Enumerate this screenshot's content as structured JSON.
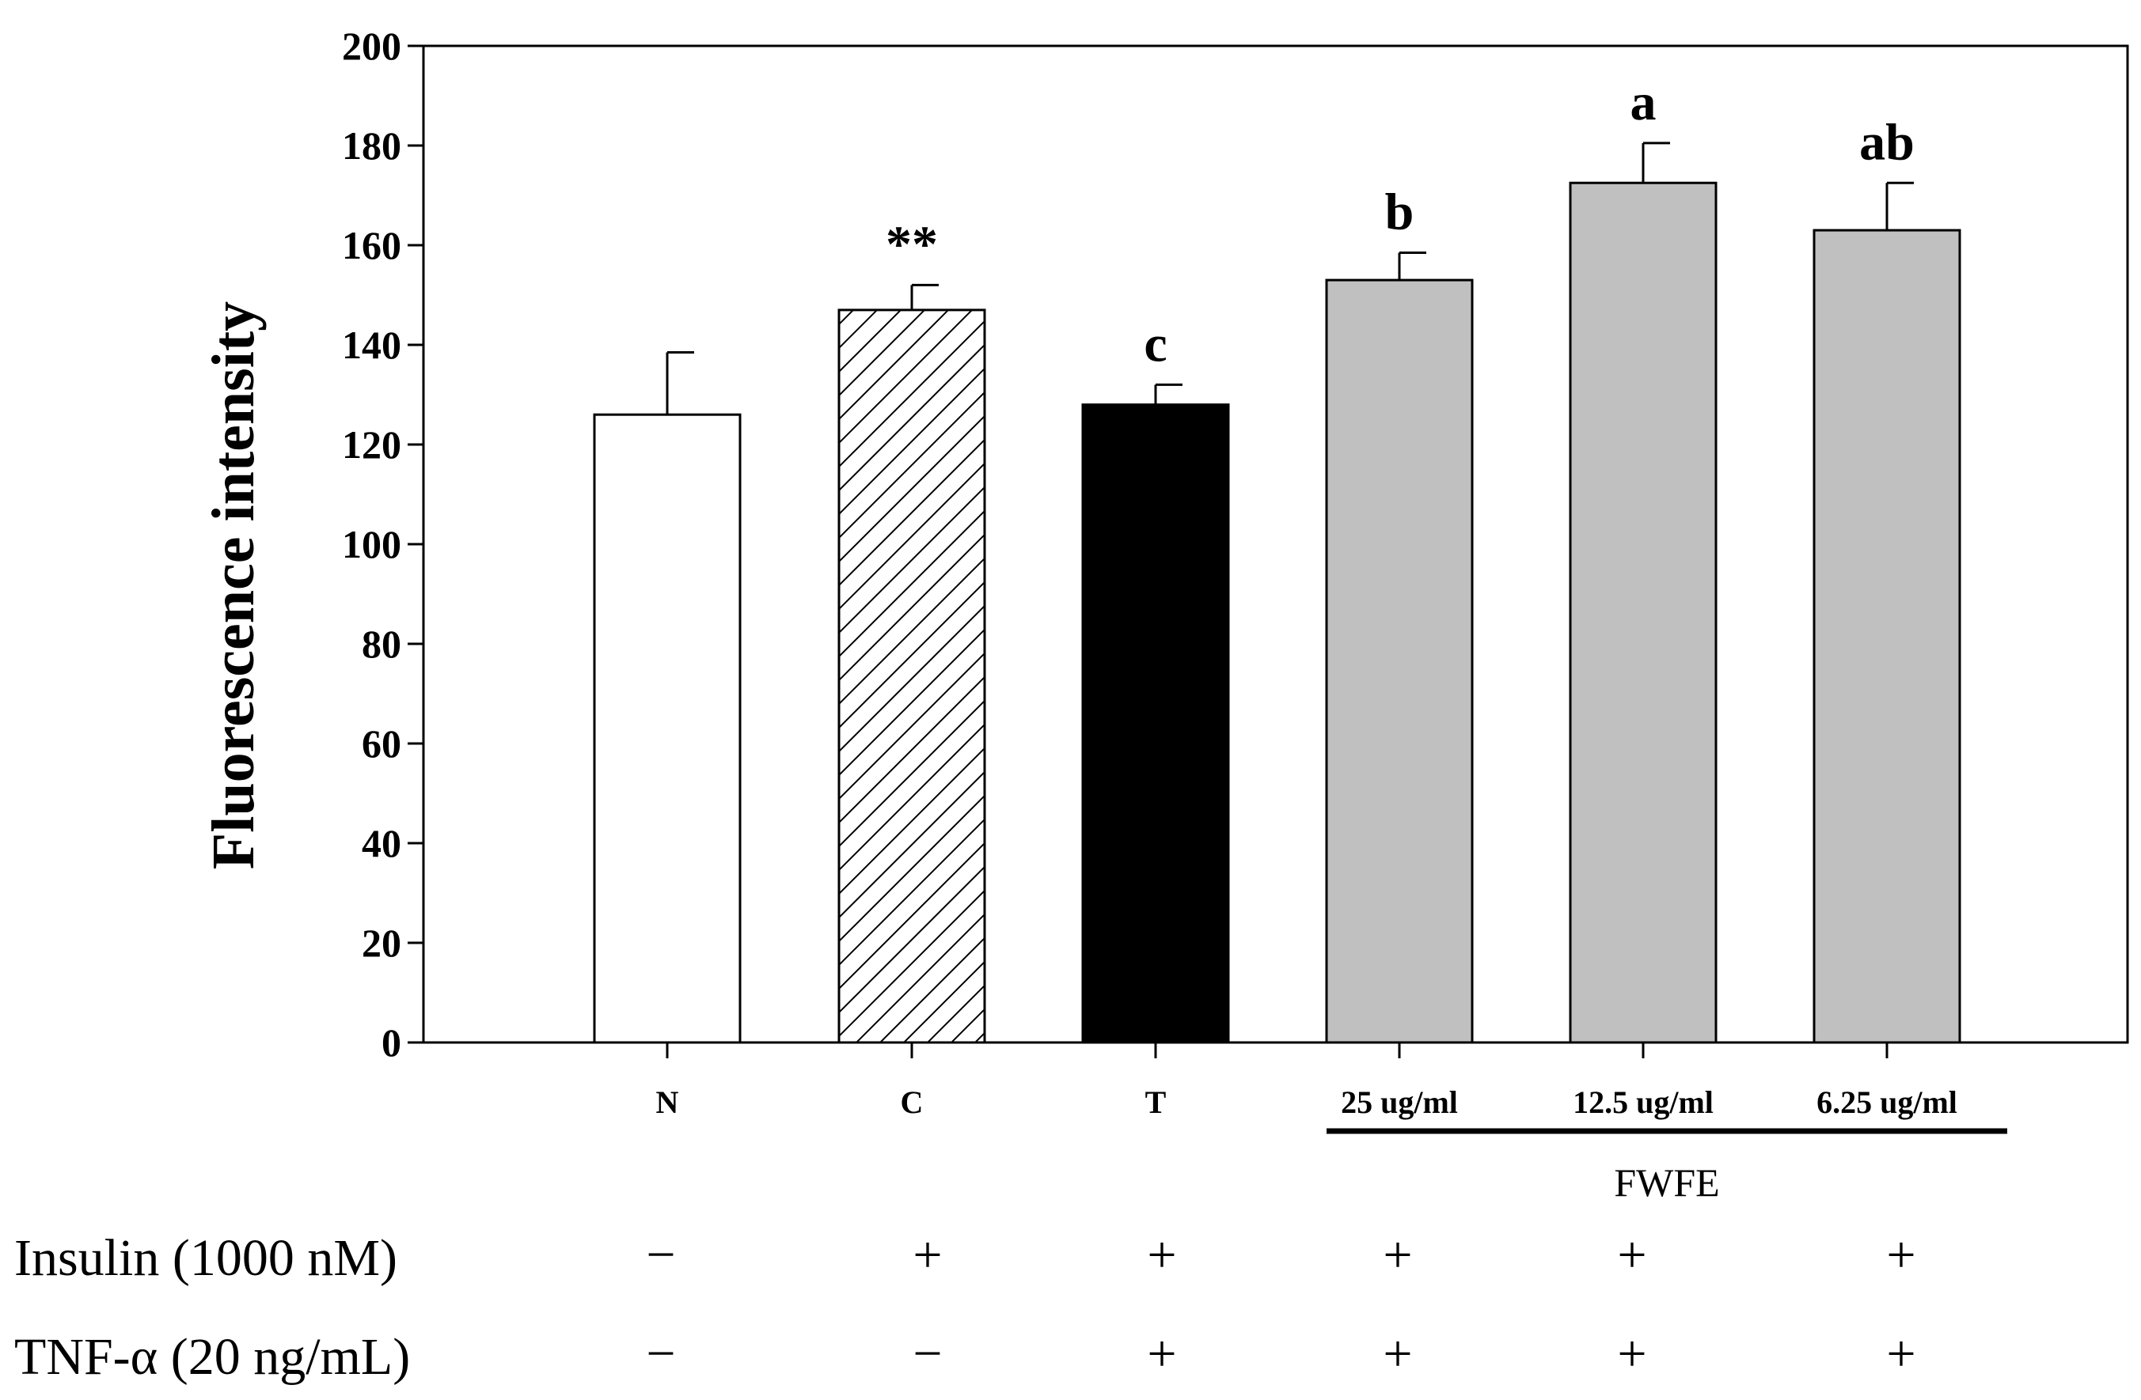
{
  "chart_data": {
    "type": "bar",
    "title": "",
    "xlabel": "",
    "ylabel": "Fluorescence intensity",
    "ylim": [
      0,
      200
    ],
    "yticks": [
      "0",
      "20",
      "40",
      "60",
      "80",
      "100",
      "120",
      "140",
      "160",
      "180",
      "200"
    ],
    "grid": false,
    "categories": [
      "N",
      "C",
      "T",
      "25 ug/ml",
      "12.5 ug/ml",
      "6.25 ug/ml"
    ],
    "values": [
      126,
      147,
      128,
      153,
      172.5,
      163
    ],
    "errors": [
      12.5,
      5,
      4,
      5.5,
      8,
      9.5
    ],
    "fills": [
      "#ffffff",
      "hatch",
      "#000000",
      "#c0c0c0",
      "#c0c0c0",
      "#c0c0c0"
    ],
    "annotations": [
      "",
      "**",
      "c",
      "b",
      "a",
      "ab"
    ],
    "group_bracket": {
      "label": "FWFE",
      "covers": [
        "25 ug/ml",
        "12.5 ug/ml",
        "6.25 ug/ml"
      ]
    },
    "conditions": [
      {
        "label": "Insulin (1000 nM)",
        "symbols": [
          "−",
          "+",
          "+",
          "+",
          "+",
          "+"
        ]
      },
      {
        "label": "TNF-α (20 ng/mL)",
        "symbols": [
          "−",
          "−",
          "+",
          "+",
          "+",
          "+"
        ]
      }
    ]
  }
}
